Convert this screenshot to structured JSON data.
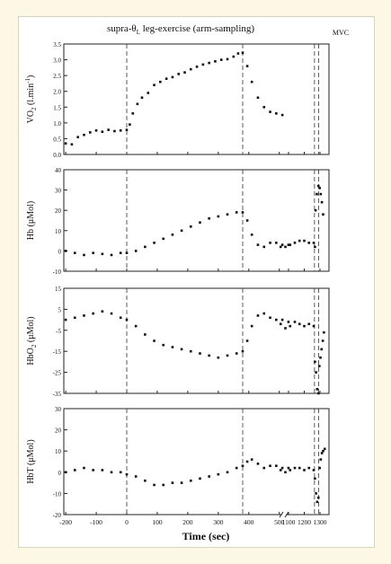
{
  "chart_data": {
    "type": "scatter",
    "title_main": "supra-θ",
    "title_sub": "L",
    "title_rest": " leg-exercise (arm-sampling)",
    "mvc_label": "MVC",
    "xlabel": "Time (sec)",
    "x_ticks": [
      "-200",
      "-100",
      "0",
      "100",
      "200",
      "300",
      "400",
      "500",
      "1100",
      "1200",
      "1300"
    ],
    "dashed_lines_at": [
      0,
      380,
      1265,
      1292
    ],
    "panels": [
      {
        "id": "vo2",
        "ylabel_main": "VO",
        "ylabel_sub": "2",
        "ylabel_unit": " (l.min",
        "ylabel_sup": "-1",
        "ylabel_close": ")",
        "ylim": [
          0,
          3.5
        ],
        "y_ticks": [
          "0.0",
          "0.5",
          "1.0",
          "1.5",
          "2.0",
          "2.5",
          "3.0",
          "3.5"
        ],
        "points": [
          [
            -200,
            0.35
          ],
          [
            -180,
            0.32
          ],
          [
            -160,
            0.55
          ],
          [
            -140,
            0.62
          ],
          [
            -120,
            0.7
          ],
          [
            -100,
            0.76
          ],
          [
            -80,
            0.72
          ],
          [
            -60,
            0.78
          ],
          [
            -40,
            0.74
          ],
          [
            -20,
            0.76
          ],
          [
            0,
            0.78
          ],
          [
            10,
            0.95
          ],
          [
            20,
            1.3
          ],
          [
            35,
            1.6
          ],
          [
            50,
            1.8
          ],
          [
            70,
            1.95
          ],
          [
            90,
            2.2
          ],
          [
            110,
            2.3
          ],
          [
            130,
            2.4
          ],
          [
            150,
            2.45
          ],
          [
            170,
            2.55
          ],
          [
            190,
            2.6
          ],
          [
            210,
            2.7
          ],
          [
            230,
            2.78
          ],
          [
            250,
            2.85
          ],
          [
            270,
            2.9
          ],
          [
            290,
            2.95
          ],
          [
            310,
            3.0
          ],
          [
            330,
            3.02
          ],
          [
            350,
            3.1
          ],
          [
            365,
            3.2
          ],
          [
            380,
            3.22
          ],
          [
            395,
            2.8
          ],
          [
            410,
            2.3
          ],
          [
            430,
            1.8
          ],
          [
            450,
            1.5
          ],
          [
            470,
            1.35
          ],
          [
            490,
            1.3
          ],
          [
            510,
            1.25
          ]
        ]
      },
      {
        "id": "hb",
        "ylabel_main": "Hb (μMol)",
        "ylim": [
          -10,
          40
        ],
        "y_ticks": [
          "-10",
          "0",
          "10",
          "20",
          "30",
          "40"
        ],
        "points": [
          [
            -200,
            0
          ],
          [
            -170,
            -1
          ],
          [
            -140,
            -2
          ],
          [
            -110,
            -1
          ],
          [
            -80,
            -1.5
          ],
          [
            -50,
            -2
          ],
          [
            -20,
            -1
          ],
          [
            0,
            -1
          ],
          [
            30,
            0
          ],
          [
            60,
            2
          ],
          [
            90,
            4
          ],
          [
            120,
            6
          ],
          [
            150,
            8
          ],
          [
            180,
            10
          ],
          [
            210,
            12
          ],
          [
            240,
            14
          ],
          [
            270,
            16
          ],
          [
            300,
            17
          ],
          [
            330,
            18
          ],
          [
            360,
            19
          ],
          [
            380,
            19
          ],
          [
            395,
            15
          ],
          [
            410,
            8
          ],
          [
            430,
            3
          ],
          [
            450,
            2
          ],
          [
            470,
            4
          ],
          [
            490,
            4
          ],
          [
            510,
            3
          ],
          [
            530,
            3
          ],
          [
            1050,
            2
          ],
          [
            1080,
            2
          ],
          [
            1110,
            3
          ],
          [
            1140,
            4
          ],
          [
            1170,
            5
          ],
          [
            1200,
            5
          ],
          [
            1230,
            4
          ],
          [
            1260,
            4
          ],
          [
            1268,
            2
          ],
          [
            1272,
            20
          ],
          [
            1280,
            28
          ],
          [
            1290,
            32
          ],
          [
            1298,
            31
          ],
          [
            1305,
            28
          ],
          [
            1312,
            24
          ],
          [
            1320,
            18
          ]
        ]
      },
      {
        "id": "hbo2",
        "ylabel_main": "HbO",
        "ylabel_sub": "2",
        "ylabel_unit": " (μMol)",
        "ylim": [
          -35,
          15
        ],
        "y_ticks": [
          "-35",
          "-25",
          "-15",
          "-5",
          "5",
          "15"
        ],
        "points": [
          [
            -200,
            0
          ],
          [
            -170,
            1
          ],
          [
            -140,
            2
          ],
          [
            -110,
            3
          ],
          [
            -80,
            4
          ],
          [
            -50,
            3
          ],
          [
            -20,
            1
          ],
          [
            0,
            0
          ],
          [
            30,
            -3
          ],
          [
            60,
            -7
          ],
          [
            90,
            -10
          ],
          [
            120,
            -12
          ],
          [
            150,
            -13
          ],
          [
            180,
            -14
          ],
          [
            210,
            -15
          ],
          [
            240,
            -16
          ],
          [
            270,
            -17
          ],
          [
            300,
            -18
          ],
          [
            330,
            -17
          ],
          [
            360,
            -16
          ],
          [
            380,
            -15
          ],
          [
            395,
            -10
          ],
          [
            410,
            -3
          ],
          [
            430,
            2
          ],
          [
            450,
            3
          ],
          [
            470,
            1
          ],
          [
            490,
            0
          ],
          [
            510,
            0
          ],
          [
            530,
            -1
          ],
          [
            1050,
            -2
          ],
          [
            1080,
            -4
          ],
          [
            1110,
            -3
          ],
          [
            1140,
            -1
          ],
          [
            1170,
            -2
          ],
          [
            1200,
            -3
          ],
          [
            1230,
            -2
          ],
          [
            1260,
            -3
          ],
          [
            1268,
            -20
          ],
          [
            1275,
            -25
          ],
          [
            1282,
            -33
          ],
          [
            1290,
            -35
          ],
          [
            1296,
            -22
          ],
          [
            1303,
            -18
          ],
          [
            1310,
            -14
          ],
          [
            1318,
            -10
          ],
          [
            1325,
            -6
          ]
        ]
      },
      {
        "id": "hbt",
        "ylabel_main": "HbT (μMol)",
        "ylim": [
          -20,
          30
        ],
        "y_ticks": [
          "-20",
          "-10",
          "0",
          "10",
          "20",
          "30"
        ],
        "points": [
          [
            -200,
            0
          ],
          [
            -170,
            1
          ],
          [
            -140,
            2
          ],
          [
            -110,
            1
          ],
          [
            -80,
            1
          ],
          [
            -50,
            0
          ],
          [
            -20,
            0
          ],
          [
            0,
            -1
          ],
          [
            30,
            -2
          ],
          [
            60,
            -4
          ],
          [
            90,
            -6
          ],
          [
            120,
            -6
          ],
          [
            150,
            -5
          ],
          [
            180,
            -5
          ],
          [
            210,
            -4
          ],
          [
            240,
            -3
          ],
          [
            270,
            -2
          ],
          [
            300,
            -1
          ],
          [
            330,
            0
          ],
          [
            360,
            2
          ],
          [
            380,
            3
          ],
          [
            395,
            5
          ],
          [
            410,
            6
          ],
          [
            430,
            4
          ],
          [
            450,
            2
          ],
          [
            470,
            3
          ],
          [
            490,
            3
          ],
          [
            510,
            2
          ],
          [
            530,
            2
          ],
          [
            1050,
            1
          ],
          [
            1080,
            0
          ],
          [
            1110,
            1
          ],
          [
            1140,
            2
          ],
          [
            1170,
            2
          ],
          [
            1200,
            1
          ],
          [
            1230,
            2
          ],
          [
            1260,
            1
          ],
          [
            1268,
            -3
          ],
          [
            1275,
            -10
          ],
          [
            1282,
            -14
          ],
          [
            1290,
            -12
          ],
          [
            1298,
            2
          ],
          [
            1305,
            6
          ],
          [
            1312,
            9
          ],
          [
            1320,
            10
          ],
          [
            1330,
            11
          ]
        ]
      }
    ]
  }
}
